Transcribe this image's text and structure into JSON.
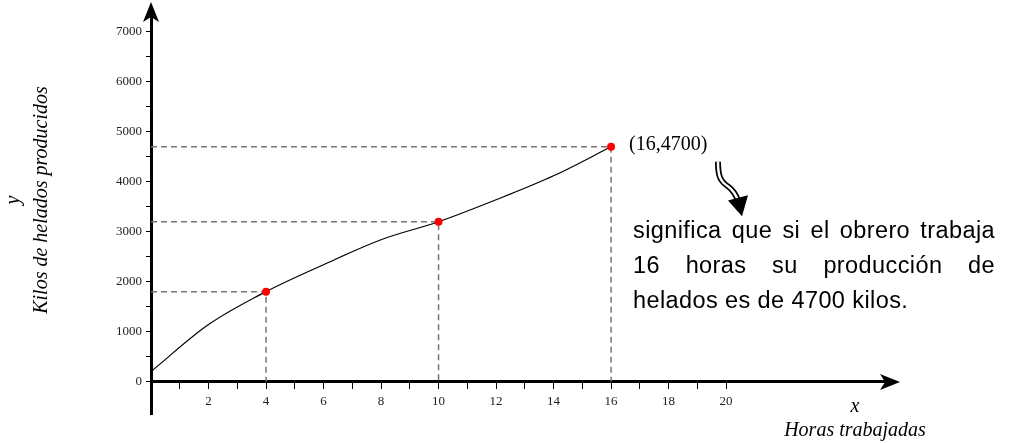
{
  "chart_data": {
    "type": "line",
    "xlabel": "x\nHoras trabajadas",
    "ylabel": "y\nKilos de helados producidos",
    "xlim": [
      0,
      25.7
    ],
    "ylim": [
      -650,
      7400
    ],
    "xticks": [
      {
        "value": 1,
        "label": null
      },
      2,
      {
        "value": 3,
        "label": null
      },
      4,
      {
        "value": 5,
        "label": null
      },
      6,
      {
        "value": 7,
        "label": null
      },
      8,
      {
        "value": 9,
        "label": null
      },
      10,
      {
        "value": 11,
        "label": null
      },
      12,
      {
        "value": 13,
        "label": null
      },
      14,
      {
        "value": 15,
        "label": null
      },
      16,
      {
        "value": 17,
        "label": null
      },
      18,
      {
        "value": 19,
        "label": null
      },
      20
    ],
    "yticks": [
      0,
      {
        "value": 500,
        "label": null
      },
      1000,
      {
        "value": 1500,
        "label": null
      },
      2000,
      {
        "value": 2500,
        "label": null
      },
      3000,
      {
        "value": 3500,
        "label": null
      },
      4000,
      {
        "value": 4500,
        "label": null
      },
      5000,
      {
        "value": 5500,
        "label": null
      },
      6000,
      {
        "value": 6500,
        "label": null
      },
      7000
    ],
    "grid": false,
    "legend": false,
    "series": [
      {
        "type": "line",
        "color": "#000000",
        "marker": "none",
        "line_style": "solid",
        "x": [
          0,
          2,
          4,
          6,
          8,
          10,
          12,
          14,
          16
        ],
        "values": [
          200,
          1140,
          1800,
          2340,
          2840,
          3200,
          3640,
          4120,
          4700
        ]
      },
      {
        "type": "line",
        "color": "#777777",
        "marker": "none",
        "line_style": "dashed",
        "x": [
          0,
          4,
          4
        ],
        "values": [
          1800,
          1800,
          0
        ]
      },
      {
        "type": "line",
        "color": "#777777",
        "marker": "none",
        "line_style": "dashed",
        "x": [
          0,
          10,
          10
        ],
        "values": [
          3200,
          3200,
          0
        ]
      },
      {
        "type": "line",
        "color": "#777777",
        "marker": "none",
        "line_style": "dashed",
        "x": [
          0,
          16,
          16
        ],
        "values": [
          4700,
          4700,
          0
        ]
      },
      {
        "type": "scatter",
        "color": "#ff0000",
        "marker": "circle",
        "x": [
          4,
          10,
          16
        ],
        "values": [
          1800,
          3200,
          4700
        ]
      }
    ],
    "annotations": [
      {
        "text": "(16,4700)",
        "x": 16,
        "y": 4700
      },
      "significa que si el obrero trabaja 16 horas su producción de helados es de 4700 kilos."
    ]
  }
}
